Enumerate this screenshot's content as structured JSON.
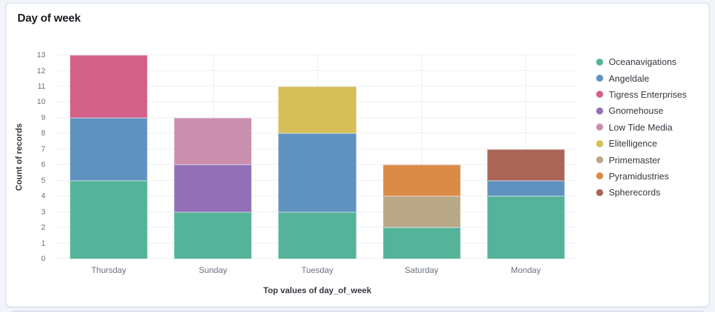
{
  "panel": {
    "title": "Day of week"
  },
  "chart_data": {
    "type": "bar",
    "stacked": true,
    "title": "Day of week",
    "categories": [
      "Thursday",
      "Sunday",
      "Tuesday",
      "Saturday",
      "Monday"
    ],
    "series": [
      {
        "name": "Oceanavigations",
        "color": "#54B399",
        "values": [
          5,
          3,
          3,
          2,
          4
        ]
      },
      {
        "name": "Angeldale",
        "color": "#6092C0",
        "values": [
          4,
          0,
          5,
          0,
          1
        ]
      },
      {
        "name": "Tigress Enterprises",
        "color": "#D36086",
        "values": [
          4,
          0,
          0,
          0,
          0
        ]
      },
      {
        "name": "Gnomehouse",
        "color": "#9170B8",
        "values": [
          0,
          3,
          0,
          0,
          0
        ]
      },
      {
        "name": "Low Tide Media",
        "color": "#CA8EAE",
        "values": [
          0,
          3,
          0,
          0,
          0
        ]
      },
      {
        "name": "Elitelligence",
        "color": "#D6BF57",
        "values": [
          0,
          0,
          3,
          0,
          0
        ]
      },
      {
        "name": "Primemaster",
        "color": "#B9A888",
        "values": [
          0,
          0,
          0,
          2,
          0
        ]
      },
      {
        "name": "Pyramidustries",
        "color": "#DA8B45",
        "values": [
          0,
          0,
          0,
          2,
          0
        ]
      },
      {
        "name": "Spherecords",
        "color": "#AA6556",
        "values": [
          0,
          0,
          0,
          0,
          2
        ]
      }
    ],
    "stack_totals": [
      13,
      9,
      11,
      6,
      7
    ],
    "xlabel": "Top values of day_of_week",
    "ylabel": "Count of records",
    "ylim": [
      0,
      13
    ],
    "y_ticks": [
      0,
      1,
      2,
      3,
      4,
      5,
      6,
      7,
      8,
      9,
      10,
      11,
      12,
      13
    ],
    "grid": true,
    "legend_position": "right"
  },
  "colors": {
    "page_background": "#f1f4f9",
    "panel_background": "#ffffff",
    "panel_border": "#d3dae6",
    "grid_line": "#edeff4",
    "grid_line_dashed": "#dfe3ea",
    "tick_text": "#69707d",
    "axis_title_text": "#343741",
    "title_text": "#1a1c21"
  }
}
